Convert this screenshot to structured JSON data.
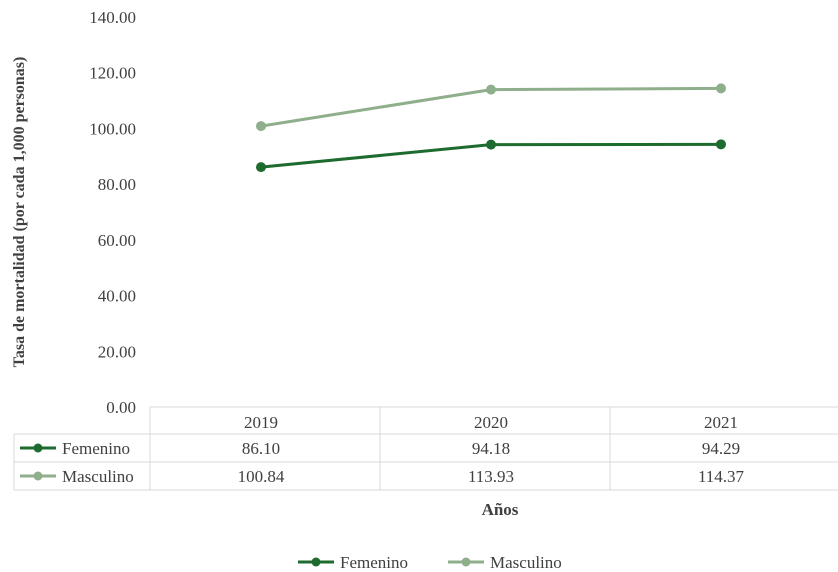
{
  "chart_data": {
    "type": "line",
    "title": "",
    "ylabel": "Tasa de mortalidad (por cada 1,000 personas)",
    "xlabel": "Años",
    "ylim": [
      0,
      140
    ],
    "yticks": [
      "0.00",
      "20.00",
      "40.00",
      "60.00",
      "80.00",
      "100.00",
      "120.00",
      "140.00"
    ],
    "categories": [
      "2019",
      "2020",
      "2021"
    ],
    "series": [
      {
        "name": "Femenino",
        "values": [
          86.1,
          94.18,
          94.29
        ],
        "labels": [
          "86.10",
          "94.18",
          "94.29"
        ],
        "color": "#1e6b2f"
      },
      {
        "name": "Masculino",
        "values": [
          100.84,
          113.93,
          114.37
        ],
        "labels": [
          "100.84",
          "113.93",
          "114.37"
        ],
        "color": "#8fae8b"
      }
    ],
    "grid": false,
    "legend_position": "bottom",
    "data_table": true
  }
}
